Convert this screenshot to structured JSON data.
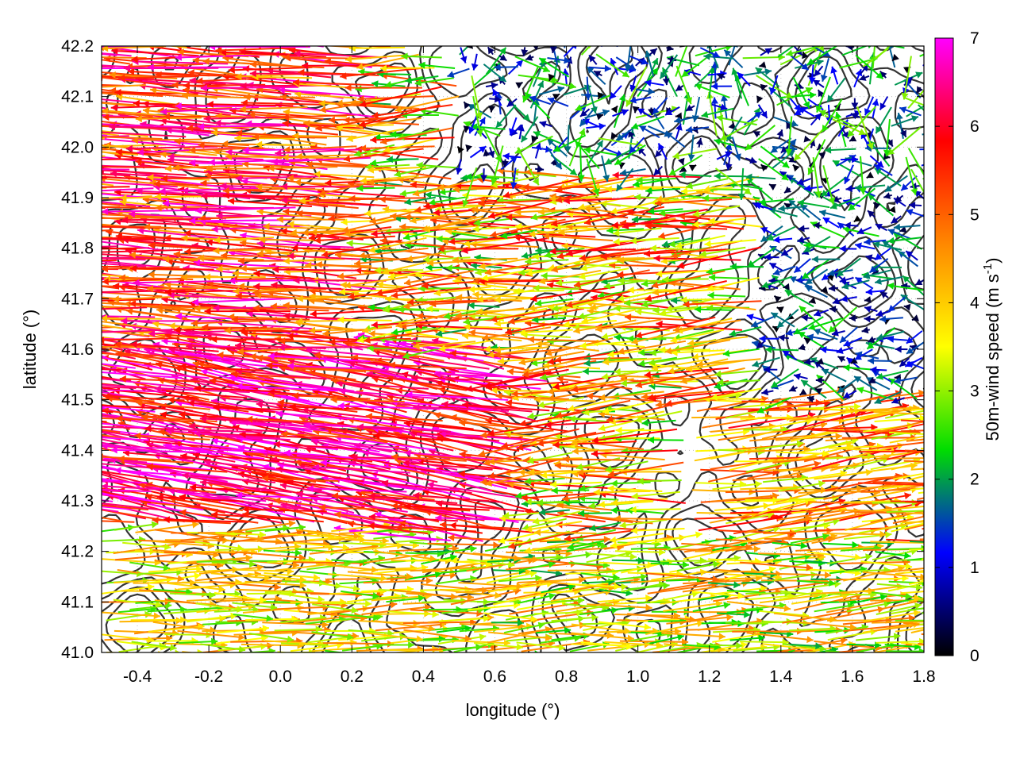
{
  "chart_data": {
    "type": "vector-field",
    "title": "",
    "xlabel": "longitude (°)",
    "ylabel": "latitude (°)",
    "xlim": [
      -0.5,
      1.8
    ],
    "ylim": [
      41.0,
      42.2
    ],
    "x_ticks": [
      -0.4,
      -0.2,
      0.0,
      0.2,
      0.4,
      0.6,
      0.8,
      1.0,
      1.2,
      1.4,
      1.6,
      1.8
    ],
    "x_tick_labels": [
      "-0.4",
      "-0.2",
      "0.0",
      "0.2",
      "0.4",
      "0.6",
      "0.8",
      "1.0",
      "1.2",
      "1.4",
      "1.6",
      "1.8"
    ],
    "y_ticks": [
      41.0,
      41.1,
      41.2,
      41.3,
      41.4,
      41.5,
      41.6,
      41.7,
      41.8,
      41.9,
      42.0,
      42.1,
      42.2
    ],
    "y_tick_labels": [
      "41.0",
      "41.1",
      "41.2",
      "41.3",
      "41.4",
      "41.5",
      "41.6",
      "41.7",
      "41.8",
      "41.9",
      "42.0",
      "42.1",
      "42.2"
    ],
    "grid": true,
    "colorbar": {
      "label_main": "50m-wind speed (m s",
      "label_sup": "-1",
      "label_close": ")",
      "range": [
        0,
        7
      ],
      "ticks": [
        0,
        1,
        2,
        3,
        4,
        5,
        6,
        7
      ],
      "tick_labels": [
        "0",
        "1",
        "2",
        "3",
        "4",
        "5",
        "6",
        "7"
      ],
      "palette": [
        "#000000",
        "#0000ff",
        "#00dd00",
        "#ffff00",
        "#ff8800",
        "#ff0000",
        "#ff00ff"
      ]
    },
    "contour_color": "#333333",
    "wind_regions": [
      {
        "region": "west, 41.55-42.2",
        "direction": "westward (from east)",
        "speed_range": [
          4.5,
          7
        ]
      },
      {
        "region": "west, 41.3-41.55",
        "direction": "westward",
        "speed_range": [
          5,
          7
        ]
      },
      {
        "region": "central, 41.2-41.5",
        "direction": "west-northwestward",
        "speed_range": [
          5.5,
          7
        ]
      },
      {
        "region": "south, 41.0-41.25",
        "direction": "eastward (from west)",
        "speed_range": [
          2,
          5
        ]
      },
      {
        "region": "east, 41.2-41.5",
        "direction": "eastward",
        "speed_range": [
          3,
          6
        ]
      },
      {
        "region": "northeast, 41.7-42.2",
        "direction": "variable",
        "speed_range": [
          0,
          3
        ]
      },
      {
        "region": "north-central, 41.7-41.9",
        "direction": "westward",
        "speed_range": [
          4,
          6.5
        ]
      }
    ]
  }
}
